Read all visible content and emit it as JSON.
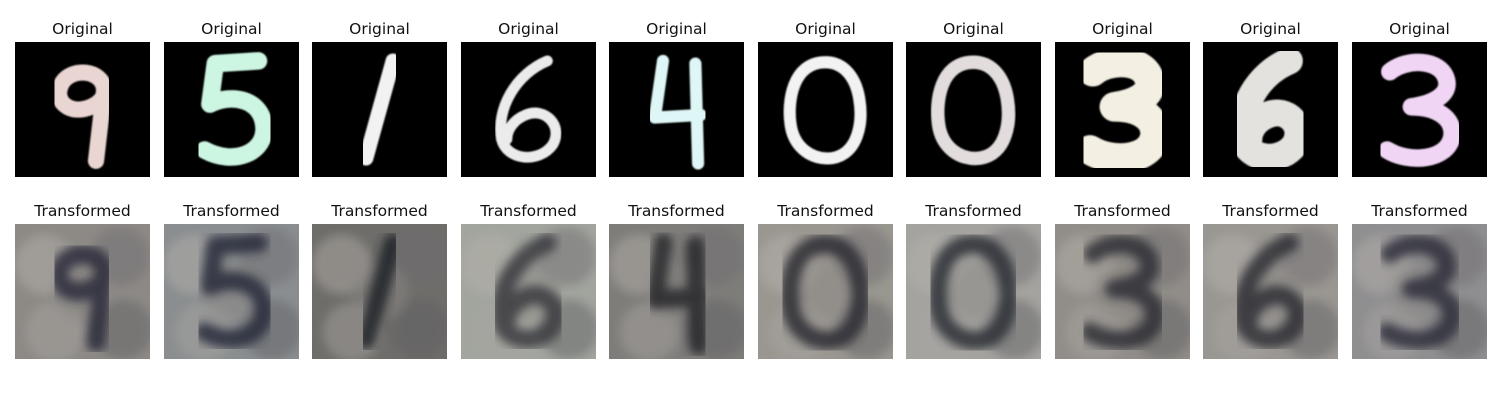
{
  "rows": [
    {
      "title": "Original",
      "images": [
        {
          "label": "9",
          "digit_color": "#e9d6d2",
          "background": "#000000"
        },
        {
          "label": "5",
          "digit_color": "#cdf6e2",
          "background": "#000000"
        },
        {
          "label": "1",
          "digit_color": "#f2f2f2",
          "background": "#000000"
        },
        {
          "label": "6",
          "digit_color": "#ebebeb",
          "background": "#000000"
        },
        {
          "label": "4",
          "digit_color": "#def6f6",
          "background": "#000000"
        },
        {
          "label": "0",
          "digit_color": "#f2f2f2",
          "background": "#000000"
        },
        {
          "label": "0",
          "digit_color": "#e2dcdc",
          "background": "#000000"
        },
        {
          "label": "3",
          "digit_color": "#f3efe2",
          "background": "#000000"
        },
        {
          "label": "6",
          "digit_color": "#e4e2df",
          "background": "#000000"
        },
        {
          "label": "3",
          "digit_color": "#f0d6f4",
          "background": "#000000"
        }
      ]
    },
    {
      "title": "Transformed",
      "images": [
        {
          "label": "9",
          "stroke_color": "#2a2a3a",
          "background": "#8d8a86"
        },
        {
          "label": "5",
          "stroke_color": "#262a3a",
          "background": "#8a8e90"
        },
        {
          "label": "1",
          "stroke_color": "#1e2026",
          "background": "#6f6d6a"
        },
        {
          "label": "6",
          "stroke_color": "#3a3a40",
          "background": "#a2a59e"
        },
        {
          "label": "4",
          "stroke_color": "#25252c",
          "background": "#7f7d7a"
        },
        {
          "label": "0",
          "stroke_color": "#2b2930",
          "background": "#9a9690"
        },
        {
          "label": "0",
          "stroke_color": "#2c2d34",
          "background": "#a4a39f"
        },
        {
          "label": "3",
          "stroke_color": "#2e2e36",
          "background": "#918d88"
        },
        {
          "label": "6",
          "stroke_color": "#2f2f36",
          "background": "#9a9792"
        },
        {
          "label": "3",
          "stroke_color": "#2e2f3a",
          "background": "#8f8e90"
        }
      ]
    }
  ]
}
